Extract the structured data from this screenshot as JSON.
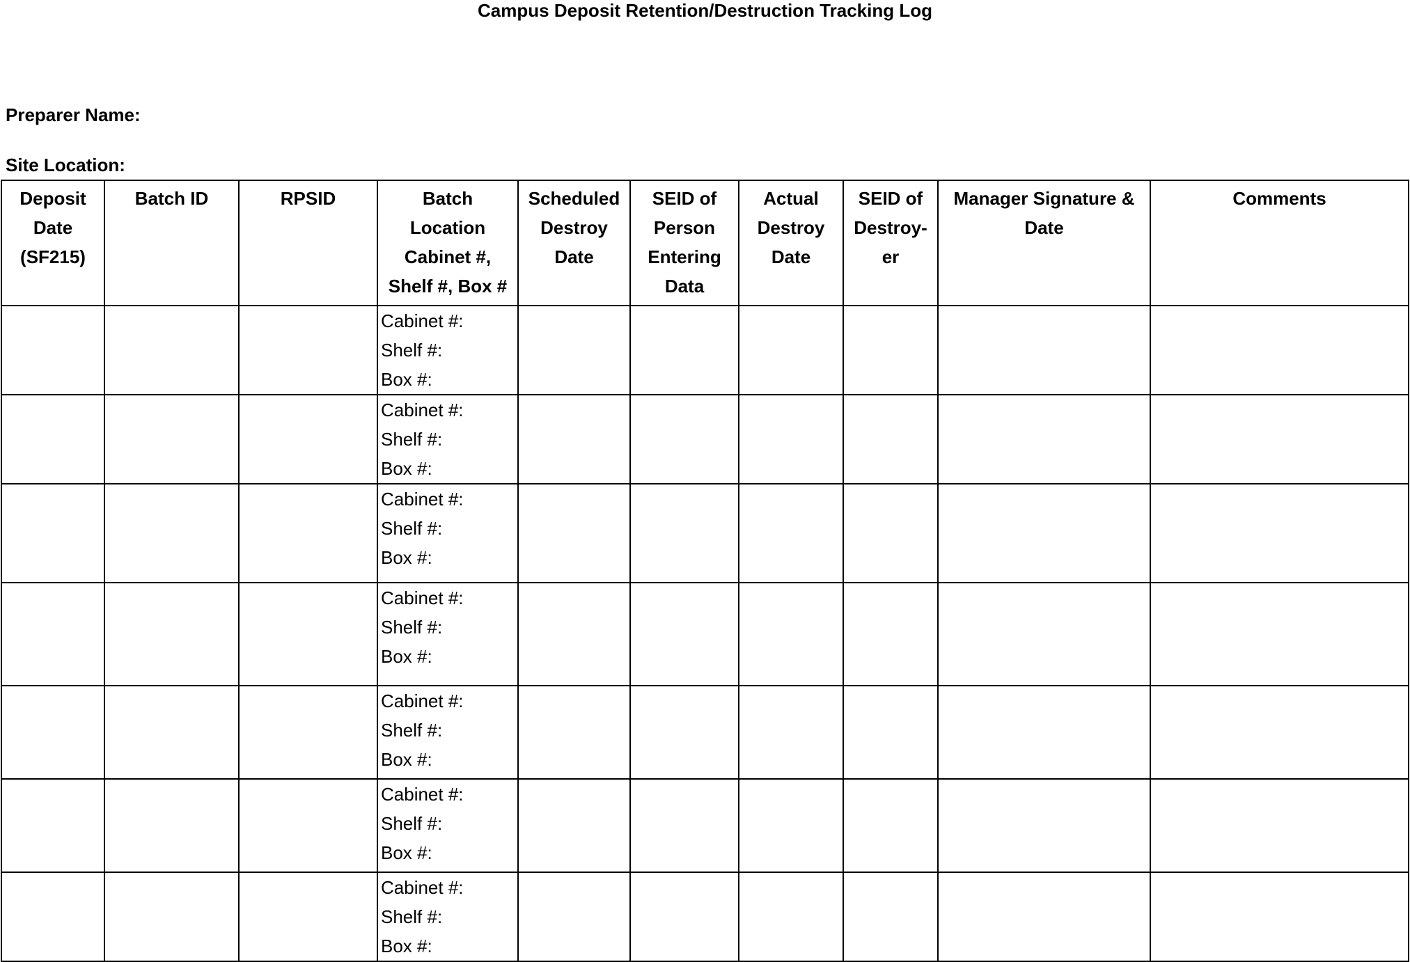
{
  "title": "Campus Deposit Retention/Destruction Tracking Log",
  "preparer_label": "Preparer Name:",
  "site_label": "Site Location:",
  "columns": [
    "Deposit\nDate\n(SF215)",
    "Batch ID",
    "RPSID",
    "Batch\nLocation\nCabinet #,\nShelf #, Box #",
    "Scheduled\nDestroy\nDate",
    "SEID of\nPerson\nEntering\nData",
    "Actual\nDestroy\nDate",
    "SEID of\nDestroy-\ner",
    "Manager Signature &\nDate",
    "Comments"
  ],
  "location_labels": {
    "cabinet": "Cabinet #:",
    "shelf": "Shelf #:",
    "box": "Box #:"
  },
  "row_count": 7
}
